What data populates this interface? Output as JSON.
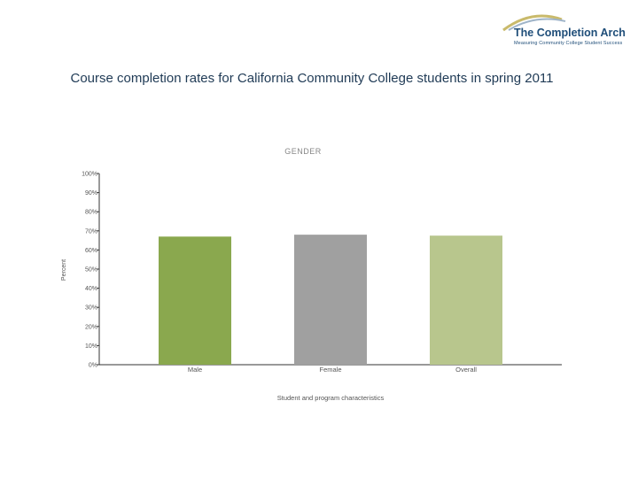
{
  "logo": {
    "title": "The Completion Arch",
    "subtitle": "Measuring Community College Student Success"
  },
  "slide_title": "Course completion rates for California Community College students in spring 2011",
  "chart_data": {
    "type": "bar",
    "title": "GENDER",
    "xlabel": "Student and program characteristics",
    "ylabel": "Percent",
    "ylim": [
      0,
      100
    ],
    "yticks": [
      0,
      10,
      20,
      30,
      40,
      50,
      60,
      70,
      80,
      90,
      100
    ],
    "ytick_labels": [
      "0%",
      "10%",
      "20%",
      "30%",
      "40%",
      "50%",
      "60%",
      "70%",
      "80%",
      "90%",
      "100%"
    ],
    "categories": [
      "Male",
      "Female",
      "Overall"
    ],
    "values": [
      67,
      68,
      67.5
    ],
    "colors": [
      "#8aa84e",
      "#a0a0a0",
      "#b8c68d"
    ],
    "grid": false,
    "legend": "none"
  }
}
